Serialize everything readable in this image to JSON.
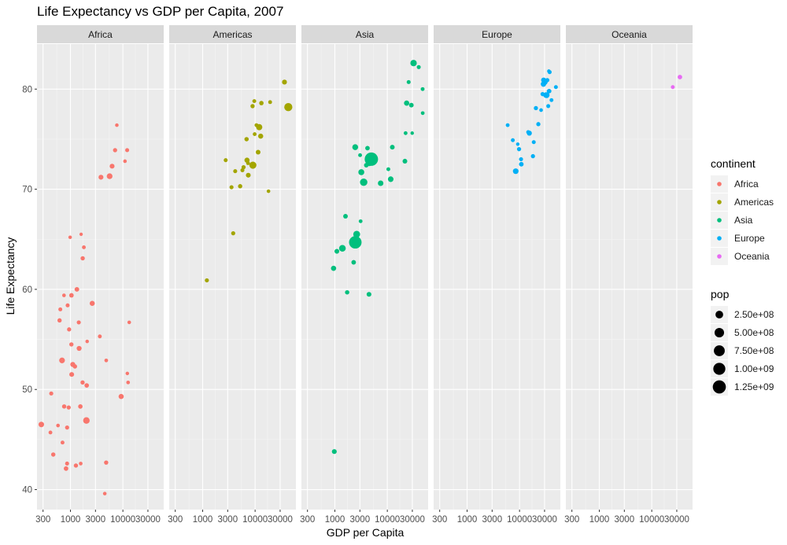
{
  "chart_data": {
    "type": "scatter",
    "title": "Life Expectancy vs GDP per Capita, 2007",
    "xlabel": "GDP per Capita",
    "ylabel": "Life Expectancy",
    "x_scale": "log10",
    "xlim": [
      230,
      60000
    ],
    "ylim": [
      38,
      84.5
    ],
    "x_ticks": [
      300,
      1000,
      3000,
      10000,
      30000
    ],
    "x_tick_labels": [
      "300",
      "1000",
      "3000",
      "10000",
      "30000"
    ],
    "y_ticks": [
      40,
      50,
      60,
      70,
      80
    ],
    "y_tick_labels": [
      "40",
      "50",
      "60",
      "70",
      "80"
    ],
    "facets": [
      "Africa",
      "Americas",
      "Asia",
      "Europe",
      "Oceania"
    ],
    "grid": true,
    "legend_position": "right",
    "colors": {
      "Africa": "#F8766D",
      "Americas": "#A3A500",
      "Asia": "#00BF7D",
      "Europe": "#00B0F6",
      "Oceania": "#E76BF3"
    },
    "size_legend": {
      "title": "pop",
      "values": [
        250000000,
        500000000,
        750000000,
        1000000000,
        1250000000
      ],
      "labels": [
        "2.50e+08",
        "5.00e+08",
        "7.50e+08",
        "1.00e+09",
        "1.25e+09"
      ]
    },
    "color_legend": {
      "title": "continent",
      "labels": [
        "Africa",
        "Americas",
        "Asia",
        "Europe",
        "Oceania"
      ]
    },
    "series": [
      {
        "name": "Africa",
        "points": [
          {
            "x": 6223,
            "y": 72.3,
            "pop": 33000000
          },
          {
            "x": 4797,
            "y": 42.7,
            "pop": 12400000
          },
          {
            "x": 1441,
            "y": 56.7,
            "pop": 8100000
          },
          {
            "x": 12570,
            "y": 50.7,
            "pop": 1600000
          },
          {
            "x": 1217,
            "y": 52.3,
            "pop": 14300000
          },
          {
            "x": 430,
            "y": 49.6,
            "pop": 8400000
          },
          {
            "x": 2042,
            "y": 50.4,
            "pop": 17700000
          },
          {
            "x": 706,
            "y": 44.7,
            "pop": 4400000
          },
          {
            "x": 1704,
            "y": 50.7,
            "pop": 10200000
          },
          {
            "x": 986,
            "y": 65.2,
            "pop": 710000
          },
          {
            "x": 278,
            "y": 46.5,
            "pop": 64600000
          },
          {
            "x": 3633,
            "y": 55.3,
            "pop": 3800000
          },
          {
            "x": 1545,
            "y": 48.3,
            "pop": 18000000
          },
          {
            "x": 2082,
            "y": 54.8,
            "pop": 500000
          },
          {
            "x": 5581,
            "y": 71.3,
            "pop": 80300000
          },
          {
            "x": 12154,
            "y": 51.6,
            "pop": 550000
          },
          {
            "x": 641,
            "y": 58.0,
            "pop": 4900000
          },
          {
            "x": 691,
            "y": 52.9,
            "pop": 76500000
          },
          {
            "x": 13206,
            "y": 56.7,
            "pop": 1450000
          },
          {
            "x": 753,
            "y": 59.4,
            "pop": 1700000
          },
          {
            "x": 1327,
            "y": 60.0,
            "pop": 22900000
          },
          {
            "x": 943,
            "y": 56.0,
            "pop": 9900000
          },
          {
            "x": 579,
            "y": 46.4,
            "pop": 1500000
          },
          {
            "x": 1463,
            "y": 54.1,
            "pop": 35600000
          },
          {
            "x": 1569,
            "y": 42.6,
            "pop": 2000000
          },
          {
            "x": 415,
            "y": 45.7,
            "pop": 3200000
          },
          {
            "x": 12057,
            "y": 73.9,
            "pop": 6000000
          },
          {
            "x": 1045,
            "y": 59.4,
            "pop": 19200000
          },
          {
            "x": 759,
            "y": 48.3,
            "pop": 13300000
          },
          {
            "x": 1042,
            "y": 54.5,
            "pop": 12000000
          },
          {
            "x": 1803,
            "y": 64.2,
            "pop": 3300000
          },
          {
            "x": 10957,
            "y": 72.8,
            "pop": 1250000
          },
          {
            "x": 3820,
            "y": 71.2,
            "pop": 33800000
          },
          {
            "x": 824,
            "y": 42.1,
            "pop": 20000000
          },
          {
            "x": 4811,
            "y": 52.9,
            "pop": 2050000
          },
          {
            "x": 620,
            "y": 56.9,
            "pop": 12900000
          },
          {
            "x": 2014,
            "y": 46.9,
            "pop": 135000000
          },
          {
            "x": 7670,
            "y": 76.4,
            "pop": 800000
          },
          {
            "x": 863,
            "y": 46.2,
            "pop": 8900000
          },
          {
            "x": 1598,
            "y": 65.5,
            "pop": 200000
          },
          {
            "x": 1712,
            "y": 63.1,
            "pop": 12300000
          },
          {
            "x": 862,
            "y": 42.6,
            "pop": 6100000
          },
          {
            "x": 926,
            "y": 48.2,
            "pop": 9100000
          },
          {
            "x": 9270,
            "y": 49.3,
            "pop": 44000000
          },
          {
            "x": 2602,
            "y": 58.6,
            "pop": 42300000
          },
          {
            "x": 4513,
            "y": 39.6,
            "pop": 1100000
          },
          {
            "x": 1107,
            "y": 52.5,
            "pop": 38100000
          },
          {
            "x": 883,
            "y": 58.4,
            "pop": 5700000
          },
          {
            "x": 7093,
            "y": 73.9,
            "pop": 10300000
          },
          {
            "x": 1056,
            "y": 51.5,
            "pop": 29200000
          },
          {
            "x": 1271,
            "y": 42.4,
            "pop": 11700000
          },
          {
            "x": 470,
            "y": 43.5,
            "pop": 12300000
          }
        ]
      },
      {
        "name": "Americas",
        "points": [
          {
            "x": 12779,
            "y": 75.3,
            "pop": 40300000
          },
          {
            "x": 3822,
            "y": 65.6,
            "pop": 9100000
          },
          {
            "x": 9066,
            "y": 72.4,
            "pop": 190000000
          },
          {
            "x": 36319,
            "y": 80.7,
            "pop": 33400000
          },
          {
            "x": 13172,
            "y": 78.6,
            "pop": 16300000
          },
          {
            "x": 7007,
            "y": 72.9,
            "pop": 44200000
          },
          {
            "x": 9645,
            "y": 78.8,
            "pop": 4100000
          },
          {
            "x": 8948,
            "y": 78.3,
            "pop": 11400000
          },
          {
            "x": 6025,
            "y": 72.2,
            "pop": 9300000
          },
          {
            "x": 6873,
            "y": 75.0,
            "pop": 13800000
          },
          {
            "x": 5728,
            "y": 71.9,
            "pop": 6900000
          },
          {
            "x": 5186,
            "y": 70.3,
            "pop": 12600000
          },
          {
            "x": 1202,
            "y": 60.9,
            "pop": 8500000
          },
          {
            "x": 3548,
            "y": 70.2,
            "pop": 7500000
          },
          {
            "x": 7321,
            "y": 72.6,
            "pop": 2800000
          },
          {
            "x": 11978,
            "y": 76.2,
            "pop": 108700000
          },
          {
            "x": 2749,
            "y": 72.9,
            "pop": 5700000
          },
          {
            "x": 9809,
            "y": 75.5,
            "pop": 3200000
          },
          {
            "x": 4173,
            "y": 71.8,
            "pop": 6700000
          },
          {
            "x": 7409,
            "y": 71.4,
            "pop": 28700000
          },
          {
            "x": 19329,
            "y": 78.7,
            "pop": 4000000
          },
          {
            "x": 18009,
            "y": 69.8,
            "pop": 1100000
          },
          {
            "x": 42952,
            "y": 78.2,
            "pop": 301100000
          },
          {
            "x": 10611,
            "y": 76.4,
            "pop": 3400000
          },
          {
            "x": 11416,
            "y": 73.7,
            "pop": 26100000
          }
        ]
      },
      {
        "name": "Asia",
        "points": [
          {
            "x": 975,
            "y": 43.8,
            "pop": 31900000
          },
          {
            "x": 29796,
            "y": 75.6,
            "pop": 700000
          },
          {
            "x": 1391,
            "y": 64.1,
            "pop": 150400000
          },
          {
            "x": 1714,
            "y": 59.7,
            "pop": 14100000
          },
          {
            "x": 4959,
            "y": 73.0,
            "pop": 1318700000
          },
          {
            "x": 39725,
            "y": 82.2,
            "pop": 6900000
          },
          {
            "x": 2452,
            "y": 64.7,
            "pop": 1110400000
          },
          {
            "x": 3541,
            "y": 70.7,
            "pop": 223500000
          },
          {
            "x": 11606,
            "y": 71.0,
            "pop": 69500000
          },
          {
            "x": 4471,
            "y": 59.5,
            "pop": 27500000
          },
          {
            "x": 25523,
            "y": 80.7,
            "pop": 6400000
          },
          {
            "x": 31656,
            "y": 82.6,
            "pop": 127500000
          },
          {
            "x": 4519,
            "y": 72.5,
            "pop": 6100000
          },
          {
            "x": 1593,
            "y": 67.3,
            "pop": 23300000
          },
          {
            "x": 23348,
            "y": 78.6,
            "pop": 49000000
          },
          {
            "x": 47307,
            "y": 77.6,
            "pop": 2500000
          },
          {
            "x": 10461,
            "y": 72.0,
            "pop": 3900000
          },
          {
            "x": 12452,
            "y": 74.2,
            "pop": 24800000
          },
          {
            "x": 3096,
            "y": 66.8,
            "pop": 2900000
          },
          {
            "x": 944,
            "y": 62.1,
            "pop": 47800000
          },
          {
            "x": 1091,
            "y": 63.8,
            "pop": 28900000
          },
          {
            "x": 22316,
            "y": 75.6,
            "pop": 3200000
          },
          {
            "x": 2606,
            "y": 65.5,
            "pop": 169300000
          },
          {
            "x": 3190,
            "y": 71.7,
            "pop": 91100000
          },
          {
            "x": 21655,
            "y": 72.8,
            "pop": 27600000
          },
          {
            "x": 47143,
            "y": 80.0,
            "pop": 4600000
          },
          {
            "x": 3970,
            "y": 72.4,
            "pop": 20400000
          },
          {
            "x": 4184,
            "y": 74.1,
            "pop": 19300000
          },
          {
            "x": 28718,
            "y": 78.4,
            "pop": 23200000
          },
          {
            "x": 7458,
            "y": 70.6,
            "pop": 65100000
          },
          {
            "x": 2442,
            "y": 74.2,
            "pop": 85300000
          },
          {
            "x": 3025,
            "y": 73.4,
            "pop": 4000000
          },
          {
            "x": 2281,
            "y": 62.7,
            "pop": 22200000
          }
        ]
      },
      {
        "name": "Europe",
        "points": [
          {
            "x": 5937,
            "y": 76.4,
            "pop": 3600000
          },
          {
            "x": 36126,
            "y": 79.8,
            "pop": 8200000
          },
          {
            "x": 33693,
            "y": 79.4,
            "pop": 10400000
          },
          {
            "x": 7446,
            "y": 74.9,
            "pop": 4600000
          },
          {
            "x": 10681,
            "y": 73.0,
            "pop": 7300000
          },
          {
            "x": 14619,
            "y": 75.7,
            "pop": 4500000
          },
          {
            "x": 22833,
            "y": 76.5,
            "pop": 10200000
          },
          {
            "x": 35278,
            "y": 78.3,
            "pop": 5500000
          },
          {
            "x": 33207,
            "y": 79.3,
            "pop": 5200000
          },
          {
            "x": 30470,
            "y": 80.7,
            "pop": 61100000
          },
          {
            "x": 32170,
            "y": 79.4,
            "pop": 82400000
          },
          {
            "x": 27538,
            "y": 79.5,
            "pop": 10700000
          },
          {
            "x": 18009,
            "y": 73.3,
            "pop": 9900000
          },
          {
            "x": 36181,
            "y": 81.8,
            "pop": 300000
          },
          {
            "x": 40676,
            "y": 78.9,
            "pop": 4100000
          },
          {
            "x": 28570,
            "y": 80.5,
            "pop": 58100000
          },
          {
            "x": 9254,
            "y": 74.5,
            "pop": 700000
          },
          {
            "x": 36798,
            "y": 79.8,
            "pop": 16600000
          },
          {
            "x": 49357,
            "y": 80.2,
            "pop": 4600000
          },
          {
            "x": 15390,
            "y": 75.6,
            "pop": 38500000
          },
          {
            "x": 20510,
            "y": 78.1,
            "pop": 10600000
          },
          {
            "x": 10808,
            "y": 72.5,
            "pop": 22300000
          },
          {
            "x": 9787,
            "y": 74.0,
            "pop": 10200000
          },
          {
            "x": 18678,
            "y": 74.7,
            "pop": 5400000
          },
          {
            "x": 25768,
            "y": 77.9,
            "pop": 2000000
          },
          {
            "x": 28821,
            "y": 80.9,
            "pop": 40400000
          },
          {
            "x": 33860,
            "y": 80.9,
            "pop": 9000000
          },
          {
            "x": 37506,
            "y": 81.7,
            "pop": 7600000
          },
          {
            "x": 8458,
            "y": 71.8,
            "pop": 71200000
          },
          {
            "x": 33203,
            "y": 79.4,
            "pop": 60800000
          }
        ]
      },
      {
        "name": "Oceania",
        "points": [
          {
            "x": 34435,
            "y": 81.2,
            "pop": 20400000
          },
          {
            "x": 25185,
            "y": 80.2,
            "pop": 4100000
          }
        ]
      }
    ]
  }
}
